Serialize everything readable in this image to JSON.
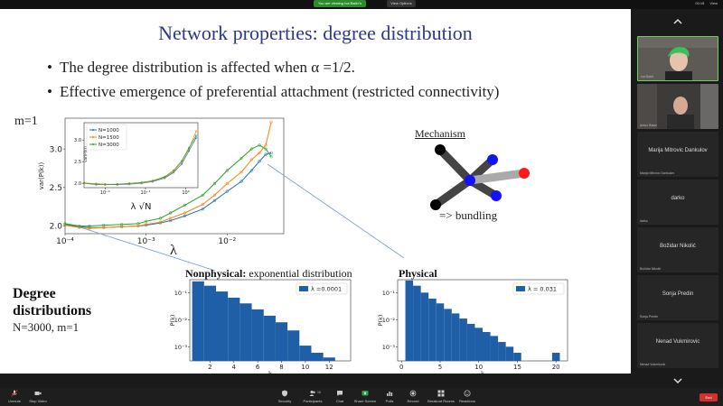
{
  "top_bar": {
    "share_notice": "You are viewing Iva Bačić's screen",
    "view_options": "View Options",
    "view_label": "View",
    "fps": "00:18"
  },
  "slide": {
    "title": "Network properties: degree distribution",
    "bullets": [
      "The degree distribution is affected when α =1/2.",
      "Effective emergence of preferential attachment (restricted connectivity)"
    ],
    "m_label": "m=1",
    "mechanism_title": "Mechanism",
    "bundling_label": "=> bundling",
    "lambda_label": "λ",
    "degree_title_line1": "Degree",
    "degree_title_line2": "distributions",
    "degree_subtitle": "N=3000, m=1",
    "nonphysical_caption_bold": "Nonphysical:",
    "nonphysical_caption_rest": " exponential distribution",
    "physical_caption": "Physical"
  },
  "chart_data": [
    {
      "type": "line",
      "xlabel": "λ",
      "ylabel": "var(P(k))",
      "x_scale": "log",
      "xlim": [
        0.0001,
        0.05
      ],
      "ylim": [
        1.9,
        3.4
      ],
      "x_ticks": [
        "10⁻⁴",
        "10⁻³",
        "10⁻²"
      ],
      "y_ticks": [
        "2.0",
        "2.5",
        "3.0"
      ],
      "x": [
        0.0001,
        0.00015,
        0.0002,
        0.0003,
        0.0005,
        0.0008,
        0.001,
        0.0015,
        0.002,
        0.003,
        0.005,
        0.007,
        0.01,
        0.015,
        0.02,
        0.025,
        0.03,
        0.035
      ],
      "series": [
        {
          "name": "N=1000",
          "color": "#1f77b4",
          "values": [
            2.02,
            1.99,
            1.98,
            1.98,
            1.99,
            2.0,
            2.01,
            2.04,
            2.07,
            2.13,
            2.22,
            2.33,
            2.45,
            2.58,
            2.72,
            2.84,
            2.93,
            2.95
          ]
        },
        {
          "name": "N=1500",
          "color": "#ff7f0e",
          "values": [
            2.01,
            1.98,
            1.97,
            1.98,
            1.99,
            2.0,
            2.02,
            2.05,
            2.1,
            2.17,
            2.28,
            2.4,
            2.55,
            2.7,
            2.86,
            2.95,
            3.05,
            3.35
          ]
        },
        {
          "name": "N=3000",
          "color": "#2ca02c",
          "values": [
            2.03,
            2.0,
            2.0,
            2.01,
            2.02,
            2.03,
            2.06,
            2.1,
            2.17,
            2.27,
            2.4,
            2.55,
            2.72,
            2.88,
            3.0,
            3.05,
            3.0,
            2.9
          ]
        }
      ]
    },
    {
      "type": "line",
      "xlabel": "λ √N",
      "ylabel": "var(P(k))",
      "x_scale": "log",
      "xlim": [
        0.003,
        2
      ],
      "ylim": [
        1.9,
        3.4
      ],
      "x_ticks": [
        "10⁻²",
        "10⁻¹",
        "10⁰"
      ],
      "y_ticks": [
        "2.0",
        "2.5",
        "3.0"
      ],
      "x": [
        0.003,
        0.006,
        0.01,
        0.02,
        0.04,
        0.08,
        0.15,
        0.3,
        0.5,
        0.8,
        1.2,
        1.8
      ],
      "series": [
        {
          "name": "N=1000",
          "color": "#1f77b4",
          "values": [
            2.0,
            1.97,
            1.97,
            1.97,
            1.98,
            2.0,
            2.04,
            2.12,
            2.25,
            2.45,
            2.75,
            3.05
          ]
        },
        {
          "name": "N=1500",
          "color": "#ff7f0e",
          "values": [
            2.0,
            1.98,
            1.97,
            1.98,
            1.99,
            2.01,
            2.05,
            2.14,
            2.27,
            2.5,
            2.8,
            3.2
          ]
        },
        {
          "name": "N=3000",
          "color": "#2ca02c",
          "values": [
            2.01,
            1.99,
            1.98,
            1.98,
            2.0,
            2.02,
            2.06,
            2.15,
            2.3,
            2.52,
            2.82,
            3.1
          ]
        }
      ]
    },
    {
      "type": "bar",
      "xlabel": "k",
      "ylabel": "P(k)",
      "y_scale": "log",
      "ylim": [
        0.0003,
        0.3
      ],
      "legend": "λ =0.0001",
      "color": "#1f5fa8",
      "x_ticks": [
        "2",
        "4",
        "6",
        "8",
        "10",
        "12"
      ],
      "y_ticks": [
        "10⁻³",
        "10⁻²",
        "10⁻¹"
      ],
      "categories": [
        1,
        2,
        3,
        4,
        5,
        6,
        7,
        8,
        9,
        10,
        11,
        12
      ],
      "values": [
        0.26,
        0.18,
        0.11,
        0.065,
        0.04,
        0.024,
        0.014,
        0.008,
        0.004,
        0.0011,
        0.0006,
        0.0004
      ]
    },
    {
      "type": "bar",
      "xlabel": "k",
      "ylabel": "P(k)",
      "y_scale": "log",
      "ylim": [
        0.0003,
        0.3
      ],
      "legend": "λ = 0.031",
      "color": "#1f5fa8",
      "x_ticks": [
        "0",
        "5",
        "10",
        "15",
        "20"
      ],
      "y_ticks": [
        "10⁻³",
        "10⁻²",
        "10⁻¹"
      ],
      "categories": [
        1,
        2,
        3,
        4,
        5,
        6,
        7,
        8,
        9,
        10,
        11,
        12,
        13,
        14,
        15,
        16,
        17,
        18,
        19,
        20
      ],
      "values": [
        0.28,
        0.18,
        0.1,
        0.06,
        0.04,
        0.025,
        0.017,
        0.011,
        0.007,
        0.005,
        0.0035,
        0.0025,
        0.0015,
        0.001,
        0.0006,
        0,
        0,
        0,
        0,
        0.0006
      ]
    }
  ],
  "participants": [
    {
      "name": "Iva Bačić",
      "type": "video"
    },
    {
      "name": "Antun Balaž",
      "type": "video"
    },
    {
      "name": "Marija Mitrovic Dankulov",
      "small": "Marija Mitrovic Dankulov"
    },
    {
      "name": "darko",
      "small": "darko"
    },
    {
      "name": "Božidar Nikolić",
      "small": "Božidar Nikolić"
    },
    {
      "name": "Sonja Predin",
      "small": "Sonja Predin"
    },
    {
      "name": "Nenad Vukmirovic",
      "small": "Nenad Vukmirovic"
    }
  ],
  "bottom_bar": {
    "items": [
      "Unmute",
      "Stop Video",
      "Security",
      "Participants",
      "Chat",
      "Share Screen",
      "Polls",
      "Record",
      "Breakout Rooms",
      "Reactions"
    ],
    "participants_count": "10",
    "end_label": "End"
  }
}
